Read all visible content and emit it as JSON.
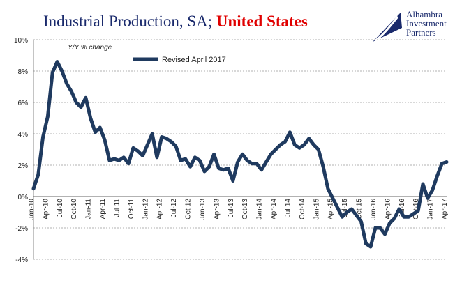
{
  "title": {
    "main": "Industrial Production, SA; ",
    "accent": "United States"
  },
  "brand": {
    "line1": "Alhambra",
    "line2": "Investment",
    "line3": "Partners"
  },
  "colors": {
    "series": "#1f3a5f",
    "title": "#1a2a6c",
    "accent": "#e00000",
    "grid": "#b0b0b0"
  },
  "chart_data": {
    "type": "line",
    "ylabel": "Y/Y % change",
    "ylim": [
      -4,
      10
    ],
    "yticks": [
      "10%",
      "8%",
      "6%",
      "4%",
      "2%",
      "0%",
      "-2%",
      "-4%"
    ],
    "xticks": [
      "Jan-10",
      "Apr-10",
      "Jul-10",
      "Oct-10",
      "Jan-11",
      "Apr-11",
      "Jul-11",
      "Oct-11",
      "Jan-12",
      "Apr-12",
      "Jul-12",
      "Oct-12",
      "Jan-13",
      "Apr-13",
      "Jul-13",
      "Oct-13",
      "Jan-14",
      "Apr-14",
      "Jul-14",
      "Oct-14",
      "Jan-15",
      "Apr-15",
      "Jul-15",
      "Oct-15",
      "Jan-16",
      "Apr-16",
      "Jul-16",
      "Oct-16",
      "Jan-17",
      "Apr-17"
    ],
    "x": [
      "Jan-10",
      "Feb-10",
      "Mar-10",
      "Apr-10",
      "May-10",
      "Jun-10",
      "Jul-10",
      "Aug-10",
      "Sep-10",
      "Oct-10",
      "Nov-10",
      "Dec-10",
      "Jan-11",
      "Feb-11",
      "Mar-11",
      "Apr-11",
      "May-11",
      "Jun-11",
      "Jul-11",
      "Aug-11",
      "Sep-11",
      "Oct-11",
      "Nov-11",
      "Dec-11",
      "Jan-12",
      "Feb-12",
      "Mar-12",
      "Apr-12",
      "May-12",
      "Jun-12",
      "Jul-12",
      "Aug-12",
      "Sep-12",
      "Oct-12",
      "Nov-12",
      "Dec-12",
      "Jan-13",
      "Feb-13",
      "Mar-13",
      "Apr-13",
      "May-13",
      "Jun-13",
      "Jul-13",
      "Aug-13",
      "Sep-13",
      "Oct-13",
      "Nov-13",
      "Dec-13",
      "Jan-14",
      "Feb-14",
      "Mar-14",
      "Apr-14",
      "May-14",
      "Jun-14",
      "Jul-14",
      "Aug-14",
      "Sep-14",
      "Oct-14",
      "Nov-14",
      "Dec-14",
      "Jan-15",
      "Feb-15",
      "Mar-15",
      "Apr-15",
      "May-15",
      "Jun-15",
      "Jul-15",
      "Aug-15",
      "Sep-15",
      "Oct-15",
      "Nov-15",
      "Dec-15",
      "Jan-16",
      "Feb-16",
      "Mar-16",
      "Apr-16",
      "May-16",
      "Jun-16",
      "Jul-16",
      "Aug-16",
      "Sep-16",
      "Oct-16",
      "Nov-16",
      "Dec-16",
      "Jan-17",
      "Feb-17",
      "Mar-17",
      "Apr-17"
    ],
    "series": [
      {
        "name": "Revised April 2017",
        "values": [
          0.5,
          1.4,
          3.8,
          5.1,
          7.9,
          8.6,
          8.0,
          7.2,
          6.7,
          6.0,
          5.7,
          6.3,
          5.0,
          4.1,
          4.4,
          3.6,
          2.3,
          2.4,
          2.3,
          2.5,
          2.1,
          3.1,
          2.9,
          2.6,
          3.3,
          4.0,
          2.5,
          3.8,
          3.7,
          3.5,
          3.2,
          2.3,
          2.4,
          1.9,
          2.5,
          2.3,
          1.6,
          1.9,
          2.7,
          1.8,
          1.7,
          1.8,
          1.0,
          2.2,
          2.7,
          2.3,
          2.1,
          2.1,
          1.7,
          2.2,
          2.7,
          3.0,
          3.3,
          3.5,
          4.1,
          3.3,
          3.1,
          3.3,
          3.7,
          3.3,
          3.0,
          1.9,
          0.5,
          -0.1,
          -0.7,
          -1.3,
          -1.0,
          -0.8,
          -1.2,
          -1.6,
          -3.0,
          -3.2,
          -2.0,
          -2.0,
          -2.4,
          -1.7,
          -1.4,
          -0.8,
          -1.3,
          -1.3,
          -1.1,
          -0.9,
          0.8,
          -0.1,
          0.4,
          1.3,
          2.1,
          2.2
        ]
      }
    ],
    "grid": true,
    "legend": "top-left"
  }
}
